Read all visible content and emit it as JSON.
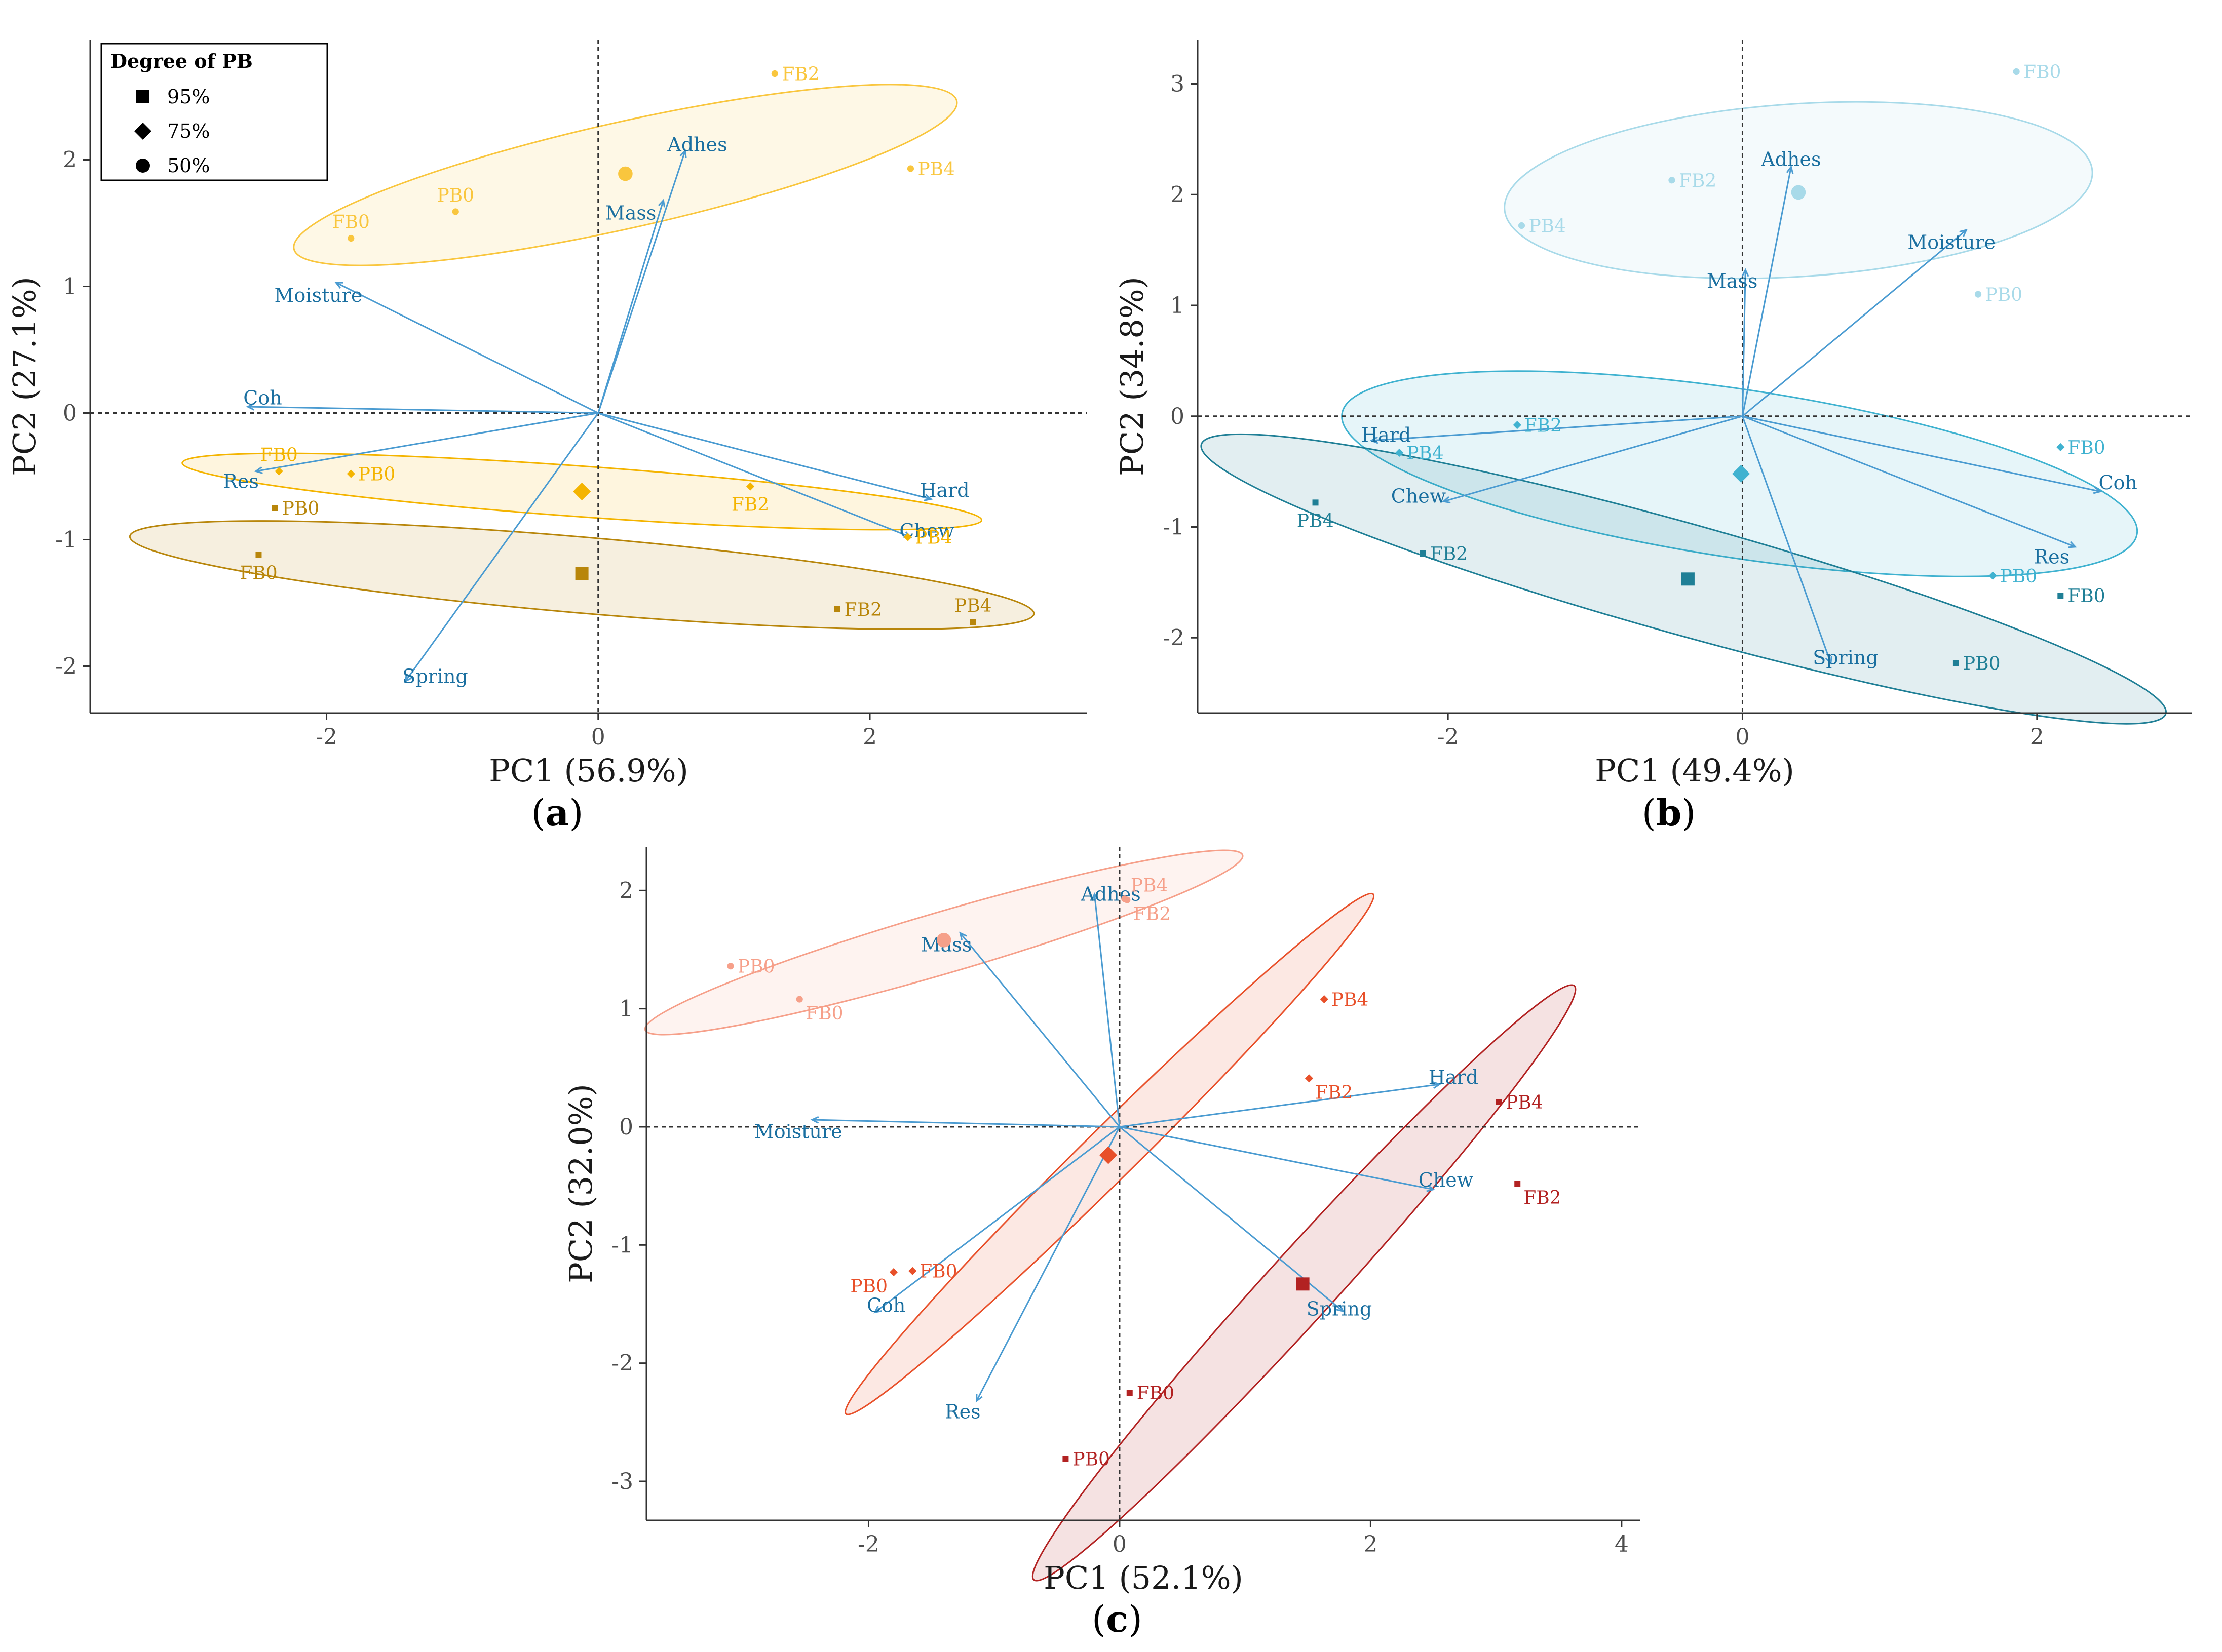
{
  "chart_data": [
    {
      "id": "a",
      "type": "scatter",
      "subtype": "pca-biplot",
      "caption_letter": "a",
      "xlabel": "PC1 (56.9%)",
      "ylabel": "PC2 (27.1%)",
      "xlim": [
        -3.74,
        3.6
      ],
      "ylim": [
        -2.37,
        2.95
      ],
      "xticks": [
        -2,
        0,
        2
      ],
      "yticks": [
        -2,
        -1,
        0,
        1,
        2
      ],
      "colors": {
        "50%": "#f9c63e",
        "75%": "#f4b400",
        "95%": "#b8860b"
      },
      "ellipses": [
        {
          "group": "50%",
          "cx": 0.2,
          "cy": 1.88,
          "rx": 2.5,
          "ry": 0.42,
          "angle": 12.6
        },
        {
          "group": "75%",
          "cx": -0.12,
          "cy": -0.62,
          "rx": 2.95,
          "ry": 0.2,
          "angle": -4.1
        },
        {
          "group": "95%",
          "cx": -0.12,
          "cy": -1.28,
          "rx": 3.34,
          "ry": 0.3,
          "angle": -4.9
        }
      ],
      "points": [
        {
          "label": "FB2",
          "x": 1.3,
          "y": 2.68,
          "group": "50%",
          "side": "r"
        },
        {
          "label": "PB4",
          "x": 2.3,
          "y": 1.93,
          "group": "50%",
          "side": "r"
        },
        {
          "label": "PB0",
          "x": -1.05,
          "y": 1.59,
          "group": "50%",
          "side": "t"
        },
        {
          "label": "FB0",
          "x": -1.82,
          "y": 1.38,
          "group": "50%",
          "side": "t"
        },
        {
          "label": "FB0",
          "x": -2.35,
          "y": -0.46,
          "group": "75%",
          "side": "t"
        },
        {
          "label": "PB0",
          "x": -1.82,
          "y": -0.48,
          "group": "75%",
          "side": "r"
        },
        {
          "label": "FB2",
          "x": 1.12,
          "y": -0.58,
          "group": "75%",
          "side": "b"
        },
        {
          "label": "PB4",
          "x": 2.28,
          "y": -0.98,
          "group": "75%",
          "side": "r"
        },
        {
          "label": "PB0",
          "x": -2.38,
          "y": -0.75,
          "group": "95%",
          "side": "r"
        },
        {
          "label": "FB0",
          "x": -2.5,
          "y": -1.12,
          "group": "95%",
          "side": "b"
        },
        {
          "label": "FB2",
          "x": 1.76,
          "y": -1.55,
          "group": "95%",
          "side": "r"
        },
        {
          "label": "PB4",
          "x": 2.76,
          "y": -1.65,
          "group": "95%",
          "side": "t"
        }
      ],
      "centroids": [
        {
          "group": "50%",
          "x": 0.2,
          "y": 1.89
        },
        {
          "group": "75%",
          "x": -0.12,
          "y": -0.62
        },
        {
          "group": "95%",
          "x": -0.12,
          "y": -1.27
        }
      ],
      "loadings": [
        {
          "label": "Adhes",
          "x": 0.64,
          "y": 2.07,
          "lx": 0.73,
          "ly": 2.12
        },
        {
          "label": "Mass",
          "x": 0.48,
          "y": 1.68,
          "lx": 0.24,
          "ly": 1.58
        },
        {
          "label": "Moisture",
          "x": -1.93,
          "y": 1.03,
          "lx": -2.06,
          "ly": 0.93
        },
        {
          "label": "Coh",
          "x": -2.58,
          "y": 0.05,
          "lx": -2.47,
          "ly": 0.12
        },
        {
          "label": "Res",
          "x": -2.52,
          "y": -0.46,
          "lx": -2.63,
          "ly": -0.54
        },
        {
          "label": "Hard",
          "x": 2.45,
          "y": -0.68,
          "lx": 2.55,
          "ly": -0.61
        },
        {
          "label": "Chew",
          "x": 2.3,
          "y": -0.98,
          "lx": 2.42,
          "ly": -0.93
        },
        {
          "label": "Spring",
          "x": -1.42,
          "y": -2.12,
          "lx": -1.2,
          "ly": -2.08
        }
      ],
      "legend": {
        "title": "Degree of PB",
        "entries": [
          {
            "label": "95%",
            "shape": "square"
          },
          {
            "label": "75%",
            "shape": "diamond"
          },
          {
            "label": "50%",
            "shape": "circle"
          }
        ]
      }
    },
    {
      "id": "b",
      "type": "scatter",
      "subtype": "pca-biplot",
      "caption_letter": "b",
      "xlabel": "PC1 (49.4%)",
      "ylabel": "PC2 (34.8%)",
      "xlim": [
        -3.7,
        3.05
      ],
      "ylim": [
        -2.68,
        3.4
      ],
      "xticks": [
        -2,
        0,
        2
      ],
      "yticks": [
        -2,
        -1,
        0,
        1,
        2,
        3
      ],
      "colors": {
        "50%": "#a8dae9",
        "75%": "#3fb2d0",
        "95%": "#1f7f96"
      },
      "ellipses": [
        {
          "group": "50%",
          "cx": 0.38,
          "cy": 2.04,
          "rx": 2.0,
          "ry": 0.78,
          "angle": 3.7
        },
        {
          "group": "75%",
          "cx": -0.02,
          "cy": -0.52,
          "rx": 2.73,
          "ry": 0.76,
          "angle": -8.6
        },
        {
          "group": "95%",
          "cx": -0.4,
          "cy": -1.47,
          "rx": 3.4,
          "ry": 0.5,
          "angle": -15.6
        }
      ],
      "points": [
        {
          "label": "FB0",
          "x": 1.86,
          "y": 3.11,
          "group": "50%",
          "side": "r"
        },
        {
          "label": "FB2",
          "x": -0.48,
          "y": 2.13,
          "group": "50%",
          "side": "r"
        },
        {
          "label": "PB4",
          "x": -1.5,
          "y": 1.72,
          "group": "50%",
          "side": "r"
        },
        {
          "label": "PB0",
          "x": 1.6,
          "y": 1.1,
          "group": "50%",
          "side": "r"
        },
        {
          "label": "FB2",
          "x": -1.53,
          "y": -0.08,
          "group": "75%",
          "side": "r"
        },
        {
          "label": "PB4",
          "x": -2.33,
          "y": -0.33,
          "group": "75%",
          "side": "r"
        },
        {
          "label": "FB0",
          "x": 2.16,
          "y": -0.28,
          "group": "75%",
          "side": "r"
        },
        {
          "label": "PB0",
          "x": 1.7,
          "y": -1.44,
          "group": "75%",
          "side": "r"
        },
        {
          "label": "PB4",
          "x": -2.9,
          "y": -0.78,
          "group": "95%",
          "side": "b"
        },
        {
          "label": "FB2",
          "x": -2.17,
          "y": -1.24,
          "group": "95%",
          "side": "r"
        },
        {
          "label": "FB0",
          "x": 2.16,
          "y": -1.62,
          "group": "95%",
          "side": "r"
        },
        {
          "label": "PB0",
          "x": 1.45,
          "y": -2.23,
          "group": "95%",
          "side": "r"
        }
      ],
      "centroids": [
        {
          "group": "50%",
          "x": 0.38,
          "y": 2.02
        },
        {
          "group": "75%",
          "x": -0.01,
          "y": -0.52
        },
        {
          "group": "95%",
          "x": -0.37,
          "y": -1.47
        }
      ],
      "loadings": [
        {
          "label": "Adhes",
          "x": 0.33,
          "y": 2.25,
          "lx": 0.33,
          "ly": 2.32
        },
        {
          "label": "Moisture",
          "x": 1.52,
          "y": 1.68,
          "lx": 1.42,
          "ly": 1.57
        },
        {
          "label": "Mass",
          "x": 0.02,
          "y": 1.32,
          "lx": -0.07,
          "ly": 1.22
        },
        {
          "label": "Hard",
          "x": -2.52,
          "y": -0.22,
          "lx": -2.42,
          "ly": -0.17
        },
        {
          "label": "Chew",
          "x": -2.03,
          "y": -0.77,
          "lx": -2.2,
          "ly": -0.72
        },
        {
          "label": "Coh",
          "x": 2.43,
          "y": -0.68,
          "lx": 2.55,
          "ly": -0.6
        },
        {
          "label": "Res",
          "x": 2.26,
          "y": -1.18,
          "lx": 2.1,
          "ly": -1.27
        },
        {
          "label": "Spring",
          "x": 0.6,
          "y": -2.23,
          "lx": 0.7,
          "ly": -2.18
        }
      ],
      "legend": null
    },
    {
      "id": "c",
      "type": "scatter",
      "subtype": "pca-biplot",
      "caption_letter": "c",
      "xlabel": "PC1 (52.1%)",
      "ylabel": "PC2 (32.0%)",
      "xlim": [
        -3.77,
        4.15
      ],
      "ylim": [
        -3.33,
        2.37
      ],
      "xticks": [
        -2,
        0,
        2,
        4
      ],
      "yticks": [
        -3,
        -2,
        -1,
        0,
        1,
        2
      ],
      "colors": {
        "50%": "#f6a08a",
        "75%": "#e8502a",
        "95%": "#b22222"
      },
      "ellipses": [
        {
          "group": "50%",
          "cx": -1.4,
          "cy": 1.56,
          "rx": 2.48,
          "ry": 0.26,
          "angle": 16.3
        },
        {
          "group": "75%",
          "cx": -0.08,
          "cy": -0.23,
          "rx": 2.95,
          "ry": 0.22,
          "angle": 44.6
        },
        {
          "group": "95%",
          "cx": 1.47,
          "cy": -1.32,
          "rx": 3.2,
          "ry": 0.29,
          "angle": 47.7
        }
      ],
      "points": [
        {
          "label": "PB4",
          "x": 0.04,
          "y": 1.93,
          "group": "50%",
          "side": "tr"
        },
        {
          "label": "FB2",
          "x": 0.06,
          "y": 1.92,
          "group": "50%",
          "side": "br"
        },
        {
          "label": "PB0",
          "x": -3.1,
          "y": 1.36,
          "group": "50%",
          "side": "r"
        },
        {
          "label": "FB0",
          "x": -2.55,
          "y": 1.08,
          "group": "50%",
          "side": "br"
        },
        {
          "label": "PB4",
          "x": 1.63,
          "y": 1.08,
          "group": "75%",
          "side": "r"
        },
        {
          "label": "FB2",
          "x": 1.51,
          "y": 0.41,
          "group": "75%",
          "side": "br"
        },
        {
          "label": "FB0",
          "x": -1.65,
          "y": -1.22,
          "group": "75%",
          "side": "r"
        },
        {
          "label": "PB0",
          "x": -1.8,
          "y": -1.23,
          "group": "75%",
          "side": "bl"
        },
        {
          "label": "PB4",
          "x": 3.02,
          "y": 0.21,
          "group": "95%",
          "side": "r"
        },
        {
          "label": "FB2",
          "x": 3.17,
          "y": -0.48,
          "group": "95%",
          "side": "br"
        },
        {
          "label": "FB0",
          "x": 0.08,
          "y": -2.25,
          "group": "95%",
          "side": "r"
        },
        {
          "label": "PB0",
          "x": -0.43,
          "y": -2.81,
          "group": "95%",
          "side": "r"
        }
      ],
      "centroids": [
        {
          "group": "50%",
          "x": -1.4,
          "y": 1.58
        },
        {
          "group": "75%",
          "x": -0.09,
          "y": -0.24
        },
        {
          "group": "95%",
          "x": 1.46,
          "y": -1.33
        }
      ],
      "loadings": [
        {
          "label": "Adhes",
          "x": -0.2,
          "y": 1.97,
          "lx": -0.07,
          "ly": 1.97
        },
        {
          "label": "Mass",
          "x": -1.27,
          "y": 1.64,
          "lx": -1.38,
          "ly": 1.54
        },
        {
          "label": "Moisture",
          "x": -2.45,
          "y": 0.06,
          "lx": -2.56,
          "ly": -0.04
        },
        {
          "label": "Hard",
          "x": 2.55,
          "y": 0.36,
          "lx": 2.66,
          "ly": 0.42
        },
        {
          "label": "Chew",
          "x": 2.5,
          "y": -0.53,
          "lx": 2.6,
          "ly": -0.45
        },
        {
          "label": "Coh",
          "x": -1.95,
          "y": -1.57,
          "lx": -1.86,
          "ly": -1.51
        },
        {
          "label": "Spring",
          "x": 1.78,
          "y": -1.56,
          "lx": 1.75,
          "ly": -1.54
        },
        {
          "label": "Res",
          "x": -1.14,
          "y": -2.32,
          "lx": -1.25,
          "ly": -2.41
        }
      ],
      "legend": null
    }
  ]
}
